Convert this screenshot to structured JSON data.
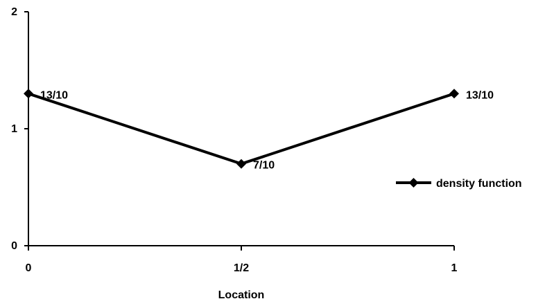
{
  "chart_data": {
    "type": "line",
    "x": [
      0,
      0.5,
      1
    ],
    "x_tick_labels": [
      "0",
      "1/2",
      "1"
    ],
    "y_ticks": [
      0,
      1,
      2
    ],
    "ylim": [
      0,
      2
    ],
    "xlabel": "Location",
    "ylabel": "",
    "title": "",
    "grid": false,
    "legend_position": "right",
    "series": [
      {
        "name": "density function",
        "values": [
          1.3,
          0.7,
          1.3
        ],
        "data_labels": [
          "13/10",
          "7/10",
          "13/10"
        ],
        "color": "#000000",
        "marker": "diamond"
      }
    ]
  }
}
